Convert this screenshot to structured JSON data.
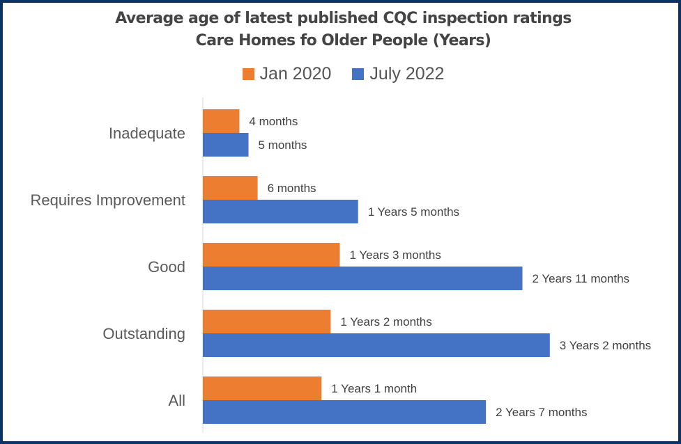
{
  "chart_data": {
    "type": "bar",
    "orientation": "horizontal",
    "title": "Average age of latest published CQC inspection ratings",
    "subtitle": "Care Homes fo Older People (Years)",
    "xlabel": "",
    "ylabel": "",
    "grid": false,
    "legend_position": "top",
    "categories": [
      "Inadequate",
      "Requires Improvement",
      "Good",
      "Outstanding",
      "All"
    ],
    "unit": "months",
    "series": [
      {
        "name": "Jan 2020",
        "color": "#ed7d31",
        "values": [
          4,
          6,
          15,
          14,
          13
        ],
        "labels": [
          "4 months",
          "6 months",
          "1 Years 3 months",
          "1 Years 2 months",
          "1 Years 1 month"
        ]
      },
      {
        "name": "July 2022",
        "color": "#4472c4",
        "values": [
          5,
          17,
          35,
          38,
          31
        ],
        "labels": [
          "5 months",
          "1 Years 5 months",
          "2 Years 11 months",
          "3 Years 2 months",
          "2 Years 7 months"
        ]
      }
    ]
  },
  "colors": {
    "border": "#0b3366",
    "axis": "#d9d9d9",
    "text": "#595959"
  }
}
